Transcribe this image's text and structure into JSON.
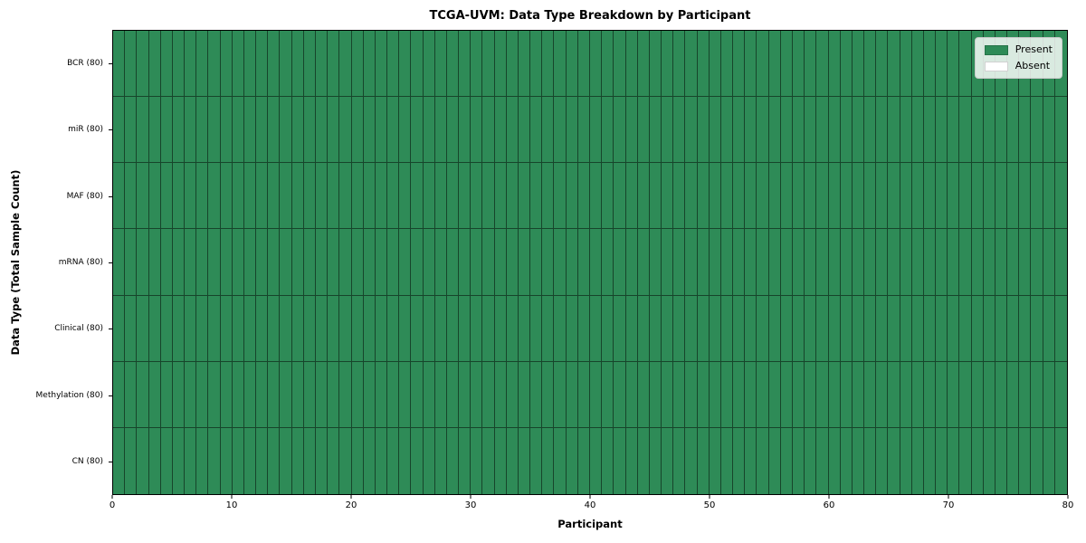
{
  "chart_data": {
    "type": "heatmap",
    "title": "TCGA-UVM: Data Type Breakdown by Participant",
    "xlabel": "Participant",
    "ylabel": "Data Type (Total Sample Count)",
    "xlim": [
      0,
      80
    ],
    "x_ticks": [
      0,
      10,
      20,
      30,
      40,
      50,
      60,
      70,
      80
    ],
    "n_participants": 80,
    "rows": [
      {
        "label": "BCR (80)",
        "data_type": "BCR",
        "total_samples": 80,
        "present_count": 80
      },
      {
        "label": "miR (80)",
        "data_type": "miR",
        "total_samples": 80,
        "present_count": 80
      },
      {
        "label": "MAF (80)",
        "data_type": "MAF",
        "total_samples": 80,
        "present_count": 80
      },
      {
        "label": "mRNA (80)",
        "data_type": "mRNA",
        "total_samples": 80,
        "present_count": 80
      },
      {
        "label": "Clinical (80)",
        "data_type": "Clinical",
        "total_samples": 80,
        "present_count": 80
      },
      {
        "label": "Methylation (80)",
        "data_type": "Methylation",
        "total_samples": 80,
        "present_count": 80
      },
      {
        "label": "CN (80)",
        "data_type": "CN",
        "total_samples": 80,
        "present_count": 80
      }
    ],
    "all_cells": "present",
    "colors": {
      "present": "#2e8b57",
      "absent": "#ffffff",
      "cell_border": "rgba(0,0,0,0.5)",
      "frame": "#000000"
    },
    "legend": {
      "position": "upper right",
      "items": [
        {
          "label": "Present",
          "color": "#2e8b57"
        },
        {
          "label": "Absent",
          "color": "#ffffff"
        }
      ]
    }
  }
}
